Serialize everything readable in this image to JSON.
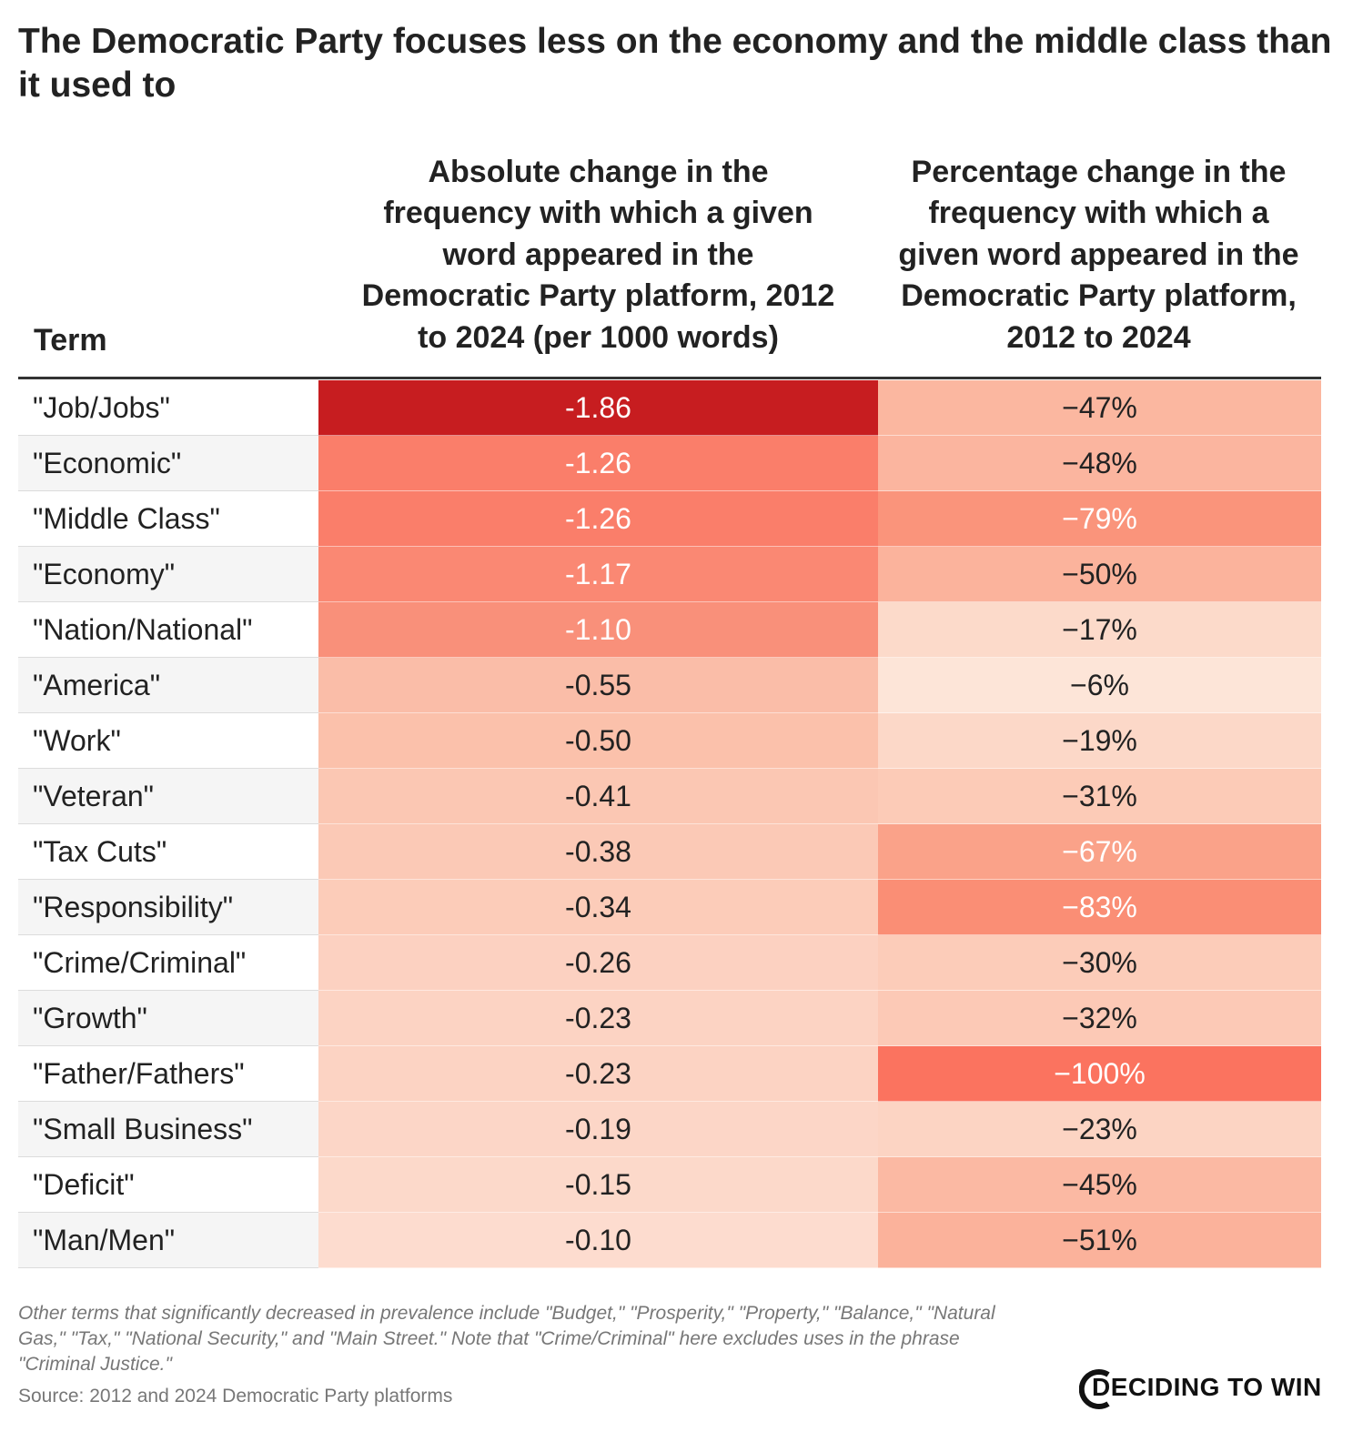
{
  "title": "The Democratic Party focuses less on the economy and the middle class than it used to",
  "chart_data": {
    "type": "table",
    "columns": [
      "Term",
      "Absolute change in the frequency with which a given word appeared in the Democratic Party platform, 2012 to 2024 (per 1000 words)",
      "Percentage change in the frequency with which a given word appeared in the Democratic Party platform, 2012 to 2024"
    ],
    "rows": [
      {
        "term": "\"Job/Jobs\"",
        "absolute": -1.86,
        "absolute_label": "-1.86",
        "percent": -47,
        "percent_label": "−47%"
      },
      {
        "term": "\"Economic\"",
        "absolute": -1.26,
        "absolute_label": "-1.26",
        "percent": -48,
        "percent_label": "−48%"
      },
      {
        "term": "\"Middle Class\"",
        "absolute": -1.26,
        "absolute_label": "-1.26",
        "percent": -79,
        "percent_label": "−79%"
      },
      {
        "term": "\"Economy\"",
        "absolute": -1.17,
        "absolute_label": "-1.17",
        "percent": -50,
        "percent_label": "−50%"
      },
      {
        "term": "\"Nation/National\"",
        "absolute": -1.1,
        "absolute_label": "-1.10",
        "percent": -17,
        "percent_label": "−17%"
      },
      {
        "term": "\"America\"",
        "absolute": -0.55,
        "absolute_label": "-0.55",
        "percent": -6,
        "percent_label": "−6%"
      },
      {
        "term": "\"Work\"",
        "absolute": -0.5,
        "absolute_label": "-0.50",
        "percent": -19,
        "percent_label": "−19%"
      },
      {
        "term": "\"Veteran\"",
        "absolute": -0.41,
        "absolute_label": "-0.41",
        "percent": -31,
        "percent_label": "−31%"
      },
      {
        "term": "\"Tax Cuts\"",
        "absolute": -0.38,
        "absolute_label": "-0.38",
        "percent": -67,
        "percent_label": "−67%"
      },
      {
        "term": "\"Responsibility\"",
        "absolute": -0.34,
        "absolute_label": "-0.34",
        "percent": -83,
        "percent_label": "−83%"
      },
      {
        "term": "\"Crime/Criminal\"",
        "absolute": -0.26,
        "absolute_label": "-0.26",
        "percent": -30,
        "percent_label": "−30%"
      },
      {
        "term": "\"Growth\"",
        "absolute": -0.23,
        "absolute_label": "-0.23",
        "percent": -32,
        "percent_label": "−32%"
      },
      {
        "term": "\"Father/Fathers\"",
        "absolute": -0.23,
        "absolute_label": "-0.23",
        "percent": -100,
        "percent_label": "−100%"
      },
      {
        "term": "\"Small Business\"",
        "absolute": -0.19,
        "absolute_label": "-0.19",
        "percent": -23,
        "percent_label": "−23%"
      },
      {
        "term": "\"Deficit\"",
        "absolute": -0.15,
        "absolute_label": "-0.15",
        "percent": -45,
        "percent_label": "−45%"
      },
      {
        "term": "\"Man/Men\"",
        "absolute": -0.1,
        "absolute_label": "-0.10",
        "percent": -51,
        "percent_label": "−51%"
      }
    ]
  },
  "colors": {
    "abs_scale": [
      "#fde3d8",
      "#fbc3ae",
      "#f8a38c",
      "#fb6f5c",
      "#c71d20"
    ],
    "pct_scale": [
      "#fdebe0",
      "#fcd2c0",
      "#fbb39c",
      "#fa9a80",
      "#fb735f"
    ],
    "dark_text_on_light": "#222222",
    "light_text_on_dark": "#ffffff"
  },
  "footer": {
    "note": "Other terms that significantly decreased in prevalence include \"Budget,\" \"Prosperity,\" \"Property,\" \"Balance,\" \"Natural Gas,\" \"Tax,\" \"National Security,\" and \"Main Street.\" Note that \"Crime/Criminal\" here excludes uses in the phrase \"Criminal Justice.\"",
    "source": "Source: 2012 and 2024 Democratic Party platforms",
    "logo": "DECIDING TO WIN"
  }
}
